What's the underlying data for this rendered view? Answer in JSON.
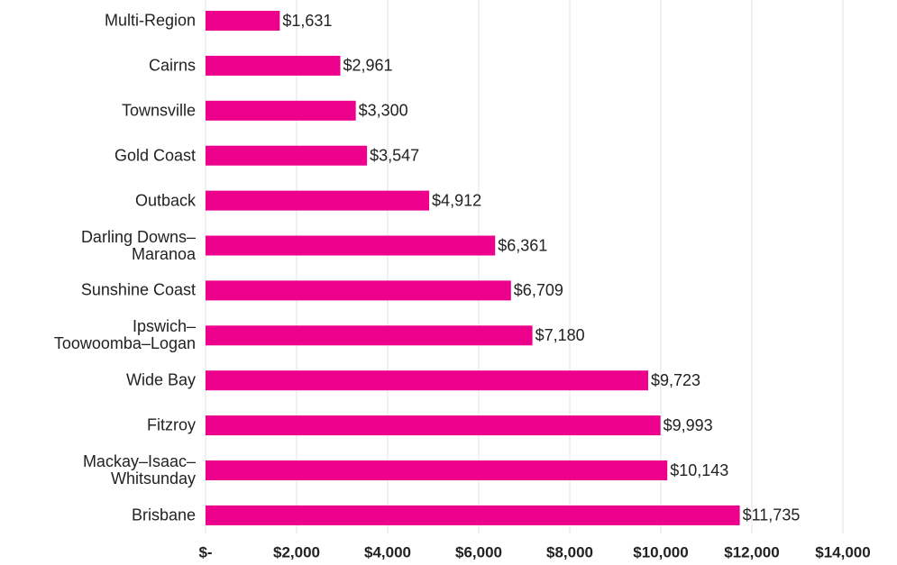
{
  "chart_data": {
    "type": "bar",
    "orientation": "horizontal",
    "categories": [
      "Multi-Region",
      "Cairns",
      "Townsville",
      "Gold Coast",
      "Outback",
      "Darling Downs–\nMaranoa",
      "Sunshine Coast",
      "Ipswich–\nToowoomba–Logan",
      "Wide Bay",
      "Fitzroy",
      "Mackay–Isaac–\nWhitsunday",
      "Brisbane"
    ],
    "values": [
      1631,
      2961,
      3300,
      3547,
      4912,
      6361,
      6709,
      7180,
      9723,
      9993,
      10143,
      11735
    ],
    "value_labels": [
      "$1,631",
      "$2,961",
      "$3,300",
      "$3,547",
      "$4,912",
      "$6,361",
      "$6,709",
      "$7,180",
      "$9,723",
      "$9,993",
      "$10,143",
      "$11,735"
    ],
    "color": "#ec008c",
    "xlim": [
      0,
      14000
    ],
    "xticks": [
      {
        "value": 0,
        "label": "$-"
      },
      {
        "value": 2000,
        "label": "$2,000"
      },
      {
        "value": 4000,
        "label": "$4,000"
      },
      {
        "value": 6000,
        "label": "$6,000"
      },
      {
        "value": 8000,
        "label": "$8,000"
      },
      {
        "value": 10000,
        "label": "$10,000"
      },
      {
        "value": 12000,
        "label": "$12,000"
      },
      {
        "value": 14000,
        "label": "$14,000"
      }
    ],
    "grid": true
  }
}
